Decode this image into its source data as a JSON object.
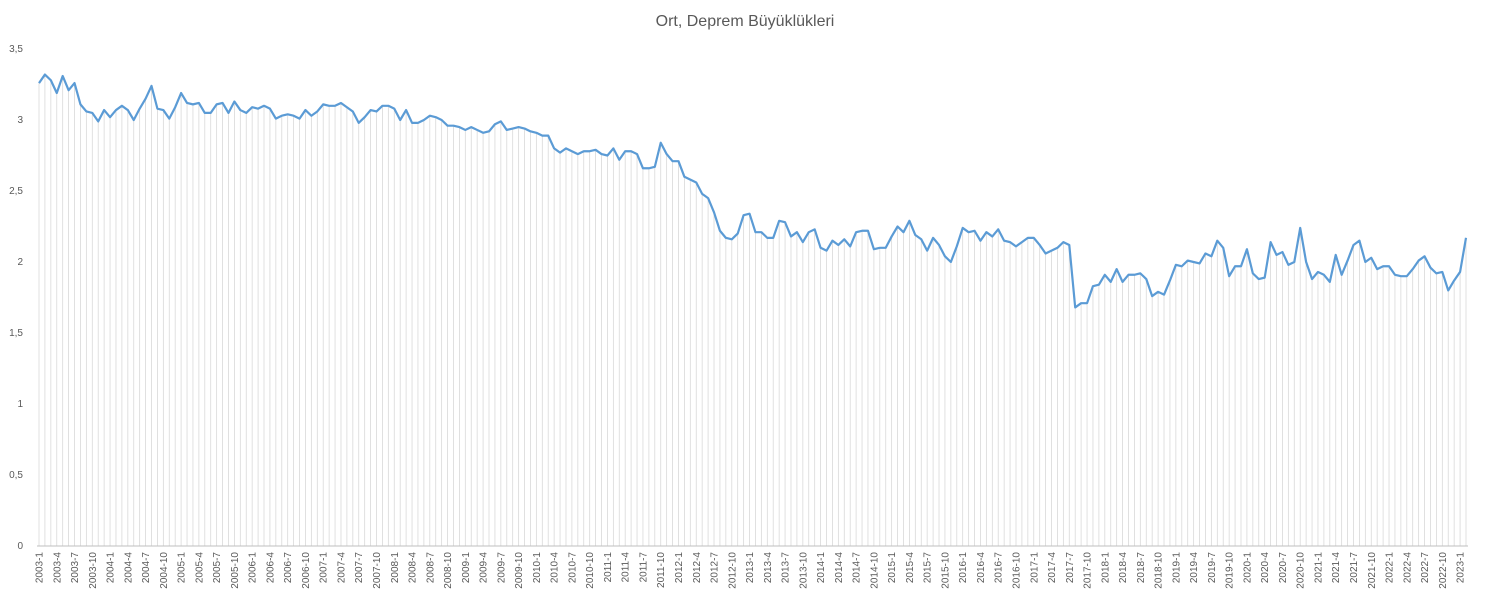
{
  "chart_data": {
    "type": "line",
    "title": "Ort, Deprem Büyüklükleri",
    "xlabel": "",
    "ylabel": "",
    "ylim": [
      0,
      3.5
    ],
    "yticks": [
      "0",
      "0,5",
      "1",
      "1,5",
      "2",
      "2,5",
      "3",
      "3,5"
    ],
    "ytick_values": [
      0,
      0.5,
      1,
      1.5,
      2,
      2.5,
      3,
      3.5
    ],
    "grid": "vertical drop lines at each month",
    "legend": "none",
    "colors": {
      "line": "#5B9BD5",
      "drop_line": "#D9D9D9",
      "axis": "#BFBFBF",
      "text": "#595959"
    },
    "start_year": 2003,
    "start_month": 1,
    "labeled_every": 3,
    "series": [
      {
        "values": [
          3.26,
          3.32,
          3.28,
          3.19,
          3.31,
          3.21,
          3.26,
          3.11,
          3.06,
          3.05,
          2.99,
          3.07,
          3.02,
          3.07,
          3.1,
          3.07,
          3.0,
          3.08,
          3.15,
          3.24,
          3.08,
          3.07,
          3.01,
          3.09,
          3.19,
          3.12,
          3.11,
          3.12,
          3.05,
          3.05,
          3.11,
          3.12,
          3.05,
          3.13,
          3.07,
          3.05,
          3.09,
          3.08,
          3.1,
          3.08,
          3.01,
          3.03,
          3.04,
          3.03,
          3.01,
          3.07,
          3.03,
          3.06,
          3.11,
          3.1,
          3.1,
          3.12,
          3.09,
          3.06,
          2.98,
          3.02,
          3.07,
          3.06,
          3.1,
          3.1,
          3.08,
          3.0,
          3.07,
          2.98,
          2.98,
          3.0,
          3.03,
          3.02,
          3.0,
          2.96,
          2.96,
          2.95,
          2.93,
          2.95,
          2.93,
          2.91,
          2.92,
          2.97,
          2.99,
          2.93,
          2.94,
          2.95,
          2.94,
          2.92,
          2.91,
          2.89,
          2.89,
          2.8,
          2.77,
          2.8,
          2.78,
          2.76,
          2.78,
          2.78,
          2.79,
          2.76,
          2.75,
          2.8,
          2.72,
          2.78,
          2.78,
          2.76,
          2.66,
          2.66,
          2.67,
          2.84,
          2.76,
          2.71,
          2.71,
          2.6,
          2.58,
          2.56,
          2.48,
          2.45,
          2.35,
          2.22,
          2.17,
          2.16,
          2.2,
          2.33,
          2.34,
          2.21,
          2.21,
          2.17,
          2.17,
          2.29,
          2.28,
          2.18,
          2.21,
          2.14,
          2.21,
          2.23,
          2.1,
          2.08,
          2.15,
          2.12,
          2.16,
          2.11,
          2.21,
          2.22,
          2.22,
          2.09,
          2.1,
          2.1,
          2.18,
          2.25,
          2.21,
          2.29,
          2.19,
          2.16,
          2.08,
          2.17,
          2.12,
          2.04,
          2.0,
          2.11,
          2.24,
          2.21,
          2.22,
          2.15,
          2.21,
          2.18,
          2.23,
          2.15,
          2.14,
          2.11,
          2.14,
          2.17,
          2.17,
          2.12,
          2.06,
          2.08,
          2.1,
          2.14,
          2.12,
          1.68,
          1.71,
          1.71,
          1.83,
          1.84,
          1.91,
          1.86,
          1.95,
          1.86,
          1.91,
          1.91,
          1.92,
          1.88,
          1.76,
          1.79,
          1.77,
          1.87,
          1.98,
          1.97,
          2.01,
          2.0,
          1.99,
          2.06,
          2.04,
          2.15,
          2.1,
          1.9,
          1.97,
          1.97,
          2.09,
          1.92,
          1.88,
          1.89,
          2.14,
          2.05,
          2.07,
          1.98,
          2.0,
          2.24,
          2.0,
          1.88,
          1.93,
          1.91,
          1.86,
          2.05,
          1.91,
          2.01,
          2.12,
          2.15,
          2.0,
          2.03,
          1.95,
          1.97,
          1.97,
          1.91,
          1.9,
          1.9,
          1.95,
          2.01,
          2.04,
          1.96,
          1.92,
          1.93,
          1.8,
          1.87,
          1.93,
          2.17
        ]
      }
    ]
  }
}
